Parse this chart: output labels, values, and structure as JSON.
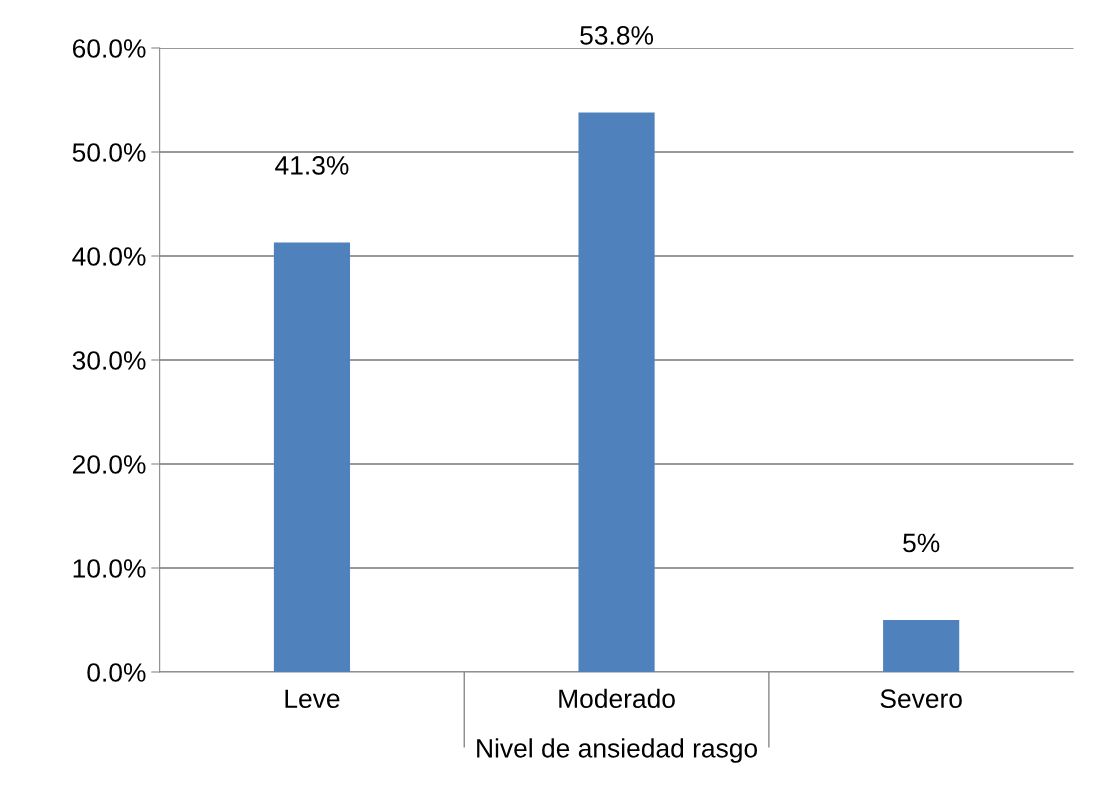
{
  "chart_data": {
    "type": "bar",
    "xlabel": "Nivel de ansiedad rasgo",
    "categories": [
      "Leve",
      "Moderado",
      "Severo"
    ],
    "values": [
      41.3,
      53.8,
      5
    ],
    "value_labels": [
      "41.3%",
      "53.8%",
      "5%"
    ],
    "color": "#4f81bd",
    "ylim": [
      0,
      60
    ],
    "yticks": [
      {
        "value": 0,
        "label": "0.0%"
      },
      {
        "value": 10,
        "label": "10.0%"
      },
      {
        "value": 20,
        "label": "20.0%"
      },
      {
        "value": 30,
        "label": "30.0%"
      },
      {
        "value": 40,
        "label": "40.0%"
      },
      {
        "value": 50,
        "label": "50.0%"
      },
      {
        "value": 60,
        "label": "60.0%"
      }
    ],
    "grid": "y"
  }
}
